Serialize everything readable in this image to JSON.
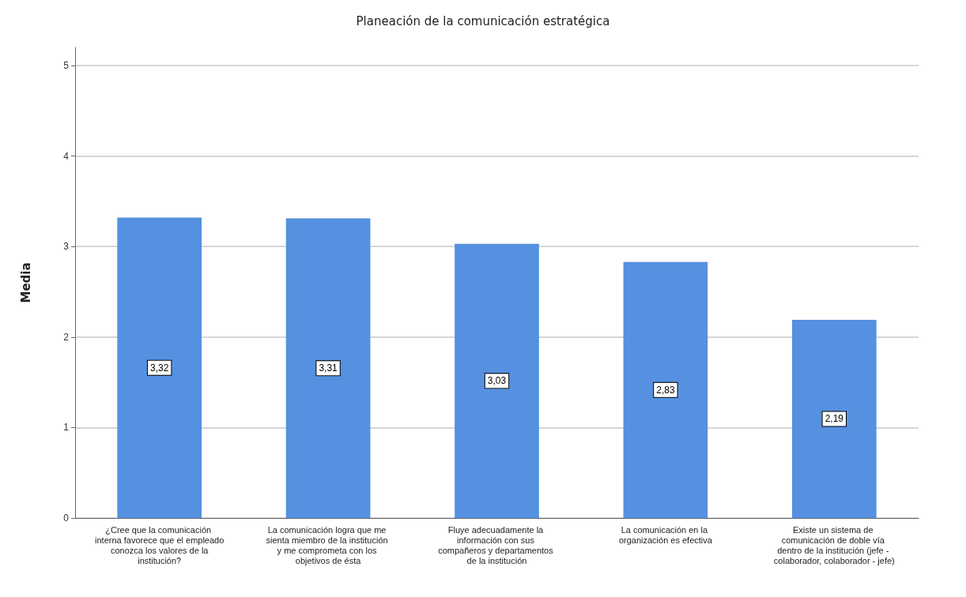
{
  "chart_data": {
    "type": "bar",
    "title": "Planeación de la comunicación estratégica",
    "ylabel": "Media",
    "categories": [
      "¿Cree que la comunicación interna favorece que el empleado conozca los valores de la institución?",
      "La comunicación logra que me sienta miembro de la institución y me comprometa con los objetivos de ésta",
      "Fluye adecuadamente la información con sus compañeros y departamentos de la institución",
      "La comunicación en la organización es efectiva",
      "Existe un sistema de comunicación de doble vía dentro de la institución (jefe - colaborador, colaborador - jefe)"
    ],
    "values": [
      3.32,
      3.31,
      3.03,
      2.83,
      2.19
    ],
    "value_labels": [
      "3,32",
      "3,31",
      "3,03",
      "2,83",
      "2,19"
    ],
    "color": "#5591e0",
    "ylim": [
      0,
      5.2
    ],
    "yticks": [
      0,
      1,
      2,
      3,
      4,
      5
    ],
    "grid": "y"
  }
}
